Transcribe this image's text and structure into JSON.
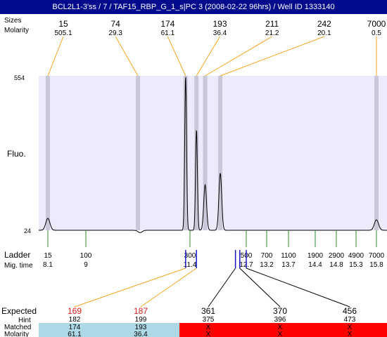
{
  "title": "BCL2L1-3'ss / 7 / TAF15_RBP_G_1_s|PC 3 (2008-02-22 96hrs) / Well ID 1333140",
  "labels": {
    "sizes": "Sizes",
    "molarity": "Molarity",
    "fluo": "Fluo.",
    "ladder": "Ladder",
    "mig_time": "Mig. time",
    "expected": "Expected",
    "hint": "Hint",
    "matched": "Matched",
    "molarity_bottom": "Molarity"
  },
  "colors": {
    "title_bg": "#000a8c",
    "plot_bg": "#ebebfb",
    "band": "#c8c8d8",
    "guide_line": "#f5a623",
    "ladder_tick": "#2e8b2e",
    "marker": "#1a1acc",
    "expected_red": "#e02020",
    "matched_ok": "#add8e6",
    "matched_fail": "#ff0000"
  },
  "chart_data": {
    "type": "line",
    "y_axis": {
      "min": 24,
      "max": 554,
      "ticks": [
        "554",
        "24"
      ]
    },
    "top_peaks": [
      {
        "size": "15",
        "molarity": "505.1",
        "time": 8.1
      },
      {
        "size": "74",
        "molarity": "29.3",
        "time": 10.2
      },
      {
        "size": "174",
        "molarity": "61.1",
        "time": 11.3
      },
      {
        "size": "193",
        "molarity": "36.4",
        "time": 11.55
      },
      {
        "size": "211",
        "molarity": "21.2",
        "time": 11.75
      },
      {
        "size": "242",
        "molarity": "20.1",
        "time": 12.1
      },
      {
        "size": "7000",
        "molarity": "0.5",
        "time": 15.8
      }
    ],
    "ladder": [
      {
        "size": "15",
        "time": "8.1"
      },
      {
        "size": "100",
        "time": "9"
      },
      {
        "size": "300",
        "time": "11.4"
      },
      {
        "size": "500",
        "time": "12.7"
      },
      {
        "size": "700",
        "time": "13.2"
      },
      {
        "size": "1100",
        "time": "13.7"
      },
      {
        "size": "1900",
        "time": "14.4"
      },
      {
        "size": "2900",
        "time": "14.8"
      },
      {
        "size": "4900",
        "time": "15.3"
      },
      {
        "size": "7000",
        "time": "15.8"
      }
    ],
    "trace_peaks": [
      {
        "time": 8.1,
        "height": 65
      },
      {
        "time": 10.25,
        "height": 16
      },
      {
        "time": 11.3,
        "height": 554
      },
      {
        "time": 11.55,
        "height": 370
      },
      {
        "time": 11.75,
        "height": 180
      },
      {
        "time": 12.1,
        "height": 220
      },
      {
        "time": 15.8,
        "height": 60
      }
    ],
    "expected": [
      {
        "expected": "169",
        "hint": "182",
        "matched": "174",
        "molarity": "61.1",
        "matched_ok": true,
        "time": 11.3
      },
      {
        "expected": "187",
        "hint": "199",
        "matched": "193",
        "molarity": "36.4",
        "matched_ok": true,
        "time": 11.55
      },
      {
        "expected": "361",
        "hint": "375",
        "matched": "X",
        "molarity": "X",
        "matched_ok": false,
        "time": 12.45
      },
      {
        "expected": "370",
        "hint": "396",
        "matched": "X",
        "molarity": "X",
        "matched_ok": false,
        "time": 12.55
      },
      {
        "expected": "456",
        "hint": "473",
        "matched": "X",
        "molarity": "X",
        "matched_ok": false,
        "time": 12.7
      }
    ]
  }
}
